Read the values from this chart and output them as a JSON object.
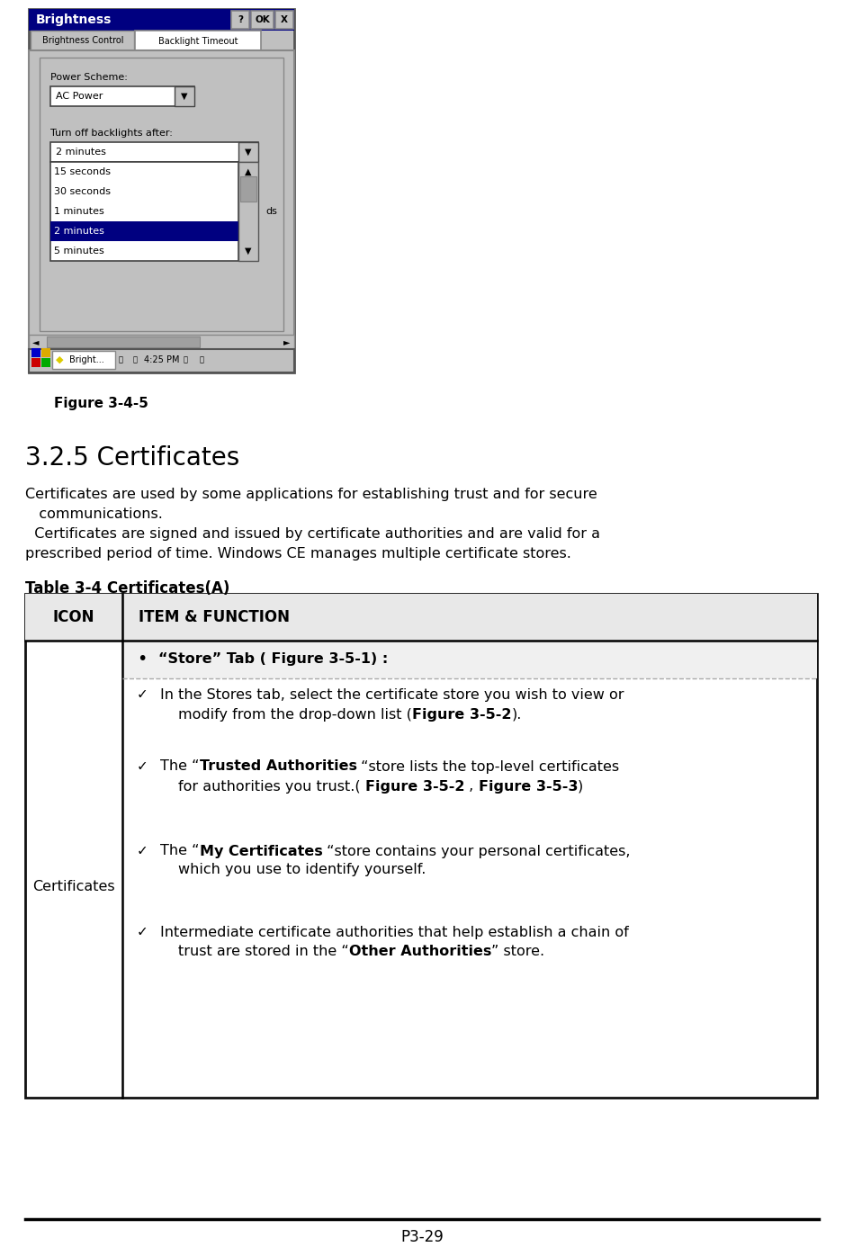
{
  "bg_color": "#ffffff",
  "figure_caption": "Figure 3-4-5",
  "section_title": "3.2.5 Certificates",
  "para1_line1": "Certificates are used by some applications for establishing trust and for secure",
  "para1_line2": "   communications.",
  "para2_line1": "  Certificates are signed and issued by certificate authorities and are valid for a",
  "para2_line2": "prescribed period of time. Windows CE manages multiple certificate stores.",
  "table_title": "Table 3-4 Certificates(A)",
  "col1_header": "ICON",
  "col2_header": "ITEM & FUNCTION",
  "col1_text": "Certificates",
  "row1_bullet": "•",
  "row1_text": "“Store” Tab ( Figure 3-5-1) :",
  "footer": "P3-29",
  "screenshot_title": "Brightness",
  "tab1": "Brightness Control",
  "tab2": "Backlight Timeout",
  "power_label": "Power Scheme:",
  "power_value": "AC Power",
  "backlight_label": "Turn off backlights after:",
  "dd_value": "2 minutes",
  "list_items": [
    "15 seconds",
    "30 seconds",
    "1 minutes",
    "2 minutes",
    "5 minutes"
  ],
  "selected_item": 3,
  "taskbar_time": "4:25 PM",
  "taskbar_app": "Bright...",
  "ds_text": "ds"
}
